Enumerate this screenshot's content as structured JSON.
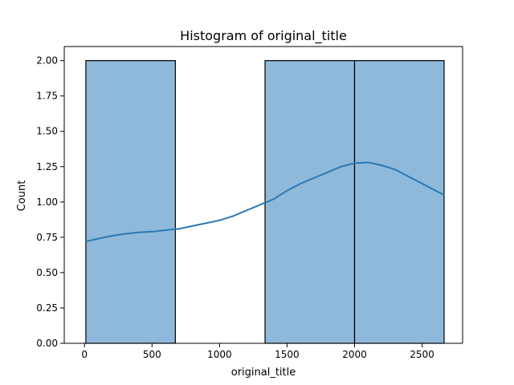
{
  "chart_data": {
    "type": "bar",
    "title": "Histogram of original_title",
    "xlabel": "original_title",
    "ylabel": "Count",
    "xlim": [
      -150,
      2800
    ],
    "ylim": [
      0,
      2.1
    ],
    "x_ticks": [
      0,
      500,
      1000,
      1500,
      2000,
      2500
    ],
    "y_ticks": [
      0.0,
      0.25,
      0.5,
      0.75,
      1.0,
      1.25,
      1.5,
      1.75,
      2.0
    ],
    "x_tick_labels": [
      "0",
      "500",
      "1000",
      "1500",
      "2000",
      "2500"
    ],
    "y_tick_labels": [
      "0.00",
      "0.25",
      "0.50",
      "0.75",
      "1.00",
      "1.25",
      "1.50",
      "1.75",
      "2.00"
    ],
    "bins": [
      {
        "start": 10,
        "end": 673,
        "count": 2
      },
      {
        "start": 673,
        "end": 1337,
        "count": 0
      },
      {
        "start": 1337,
        "end": 2000,
        "count": 2
      },
      {
        "start": 2000,
        "end": 2663,
        "count": 2
      }
    ],
    "kde": {
      "x": [
        10,
        100,
        200,
        300,
        400,
        500,
        600,
        700,
        800,
        900,
        1000,
        1100,
        1200,
        1300,
        1400,
        1500,
        1600,
        1700,
        1800,
        1900,
        2000,
        2100,
        2200,
        2300,
        2400,
        2500,
        2600,
        2663
      ],
      "y": [
        0.72,
        0.74,
        0.76,
        0.775,
        0.785,
        0.79,
        0.8,
        0.81,
        0.83,
        0.85,
        0.87,
        0.9,
        0.94,
        0.98,
        1.02,
        1.08,
        1.13,
        1.17,
        1.21,
        1.25,
        1.275,
        1.28,
        1.26,
        1.23,
        1.18,
        1.13,
        1.08,
        1.05
      ]
    },
    "grid": false,
    "colors": {
      "bar_fill": "#8fb9da",
      "bar_edge": "#000000",
      "kde_line": "#2b78b4"
    }
  }
}
